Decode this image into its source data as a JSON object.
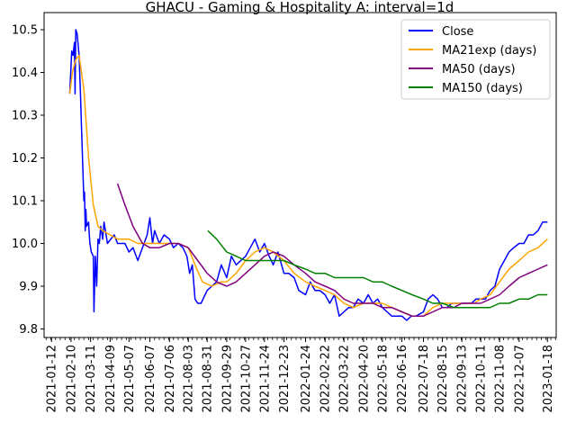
{
  "chart_data": {
    "type": "line",
    "title": "GHACU - Gaming & Hospitality A: interval=1d",
    "xlabel": "",
    "ylabel": "",
    "x_range": [
      "2021-01-01",
      "2023-01-31"
    ],
    "ylim": [
      9.78,
      10.54
    ],
    "y_ticks": [
      9.8,
      9.9,
      10.0,
      10.1,
      10.2,
      10.3,
      10.4,
      10.5
    ],
    "y_tick_labels": [
      "9.8",
      "9.9",
      "10.0",
      "10.1",
      "10.2",
      "10.3",
      "10.4",
      "10.5"
    ],
    "x_tick_labels": [
      "2021-01-12",
      "2021-02-10",
      "2021-03-11",
      "2021-04-09",
      "2021-05-07",
      "2021-06-07",
      "2021-07-06",
      "2021-08-03",
      "2021-08-31",
      "2021-09-29",
      "2021-10-27",
      "2021-11-24",
      "2021-12-23",
      "2022-01-24",
      "2022-02-22",
      "2022-03-22",
      "2022-04-20",
      "2022-05-18",
      "2022-06-16",
      "2022-07-18",
      "2022-08-15",
      "2022-09-13",
      "2022-10-11",
      "2022-11-08",
      "2022-12-07",
      "2023-01-18"
    ],
    "grid": false,
    "legend_position": "top-right",
    "series": [
      {
        "name": "Close",
        "color": "#0000ff",
        "points": [
          [
            "2021-02-08",
            10.35
          ],
          [
            "2021-02-11",
            10.45
          ],
          [
            "2021-02-13",
            10.44
          ],
          [
            "2021-02-15",
            10.47
          ],
          [
            "2021-02-16",
            10.35
          ],
          [
            "2021-02-17",
            10.5
          ],
          [
            "2021-02-19",
            10.49
          ],
          [
            "2021-02-22",
            10.44
          ],
          [
            "2021-02-24",
            10.35
          ],
          [
            "2021-02-26",
            10.25
          ],
          [
            "2021-03-01",
            10.1
          ],
          [
            "2021-03-02",
            10.12
          ],
          [
            "2021-03-03",
            10.03
          ],
          [
            "2021-03-04",
            10.08
          ],
          [
            "2021-03-05",
            10.04
          ],
          [
            "2021-03-08",
            10.05
          ],
          [
            "2021-03-09",
            10.02
          ],
          [
            "2021-03-10",
            10.0
          ],
          [
            "2021-03-12",
            9.98
          ],
          [
            "2021-03-15",
            9.97
          ],
          [
            "2021-03-16",
            9.84
          ],
          [
            "2021-03-18",
            9.97
          ],
          [
            "2021-03-20",
            9.9
          ],
          [
            "2021-03-22",
            10.01
          ],
          [
            "2021-03-24",
            10.0
          ],
          [
            "2021-03-26",
            10.04
          ],
          [
            "2021-03-29",
            10.01
          ],
          [
            "2021-03-31",
            10.05
          ],
          [
            "2021-04-05",
            10.0
          ],
          [
            "2021-04-10",
            10.01
          ],
          [
            "2021-04-15",
            10.02
          ],
          [
            "2021-04-20",
            10.0
          ],
          [
            "2021-05-01",
            10.0
          ],
          [
            "2021-05-07",
            9.98
          ],
          [
            "2021-05-13",
            9.99
          ],
          [
            "2021-05-20",
            9.96
          ],
          [
            "2021-05-27",
            9.99
          ],
          [
            "2021-06-03",
            10.02
          ],
          [
            "2021-06-07",
            10.06
          ],
          [
            "2021-06-11",
            10.0
          ],
          [
            "2021-06-14",
            10.03
          ],
          [
            "2021-06-21",
            10.0
          ],
          [
            "2021-06-28",
            10.02
          ],
          [
            "2021-07-06",
            10.01
          ],
          [
            "2021-07-12",
            9.99
          ],
          [
            "2021-07-19",
            10.0
          ],
          [
            "2021-07-26",
            9.99
          ],
          [
            "2021-08-01",
            9.97
          ],
          [
            "2021-08-05",
            9.93
          ],
          [
            "2021-08-09",
            9.95
          ],
          [
            "2021-08-13",
            9.87
          ],
          [
            "2021-08-17",
            9.86
          ],
          [
            "2021-08-22",
            9.86
          ],
          [
            "2021-08-31",
            9.89
          ],
          [
            "2021-09-07",
            9.9
          ],
          [
            "2021-09-14",
            9.91
          ],
          [
            "2021-09-21",
            9.95
          ],
          [
            "2021-09-29",
            9.92
          ],
          [
            "2021-10-06",
            9.97
          ],
          [
            "2021-10-13",
            9.95
          ],
          [
            "2021-10-20",
            9.96
          ],
          [
            "2021-10-27",
            9.97
          ],
          [
            "2021-11-03",
            9.99
          ],
          [
            "2021-11-10",
            10.01
          ],
          [
            "2021-11-17",
            9.98
          ],
          [
            "2021-11-24",
            10.0
          ],
          [
            "2021-12-01",
            9.97
          ],
          [
            "2021-12-07",
            9.95
          ],
          [
            "2021-12-14",
            9.98
          ],
          [
            "2021-12-23",
            9.93
          ],
          [
            "2021-12-30",
            9.93
          ],
          [
            "2022-01-07",
            9.92
          ],
          [
            "2022-01-14",
            9.89
          ],
          [
            "2022-01-24",
            9.88
          ],
          [
            "2022-01-31",
            9.91
          ],
          [
            "2022-02-07",
            9.89
          ],
          [
            "2022-02-14",
            9.89
          ],
          [
            "2022-02-22",
            9.88
          ],
          [
            "2022-03-01",
            9.86
          ],
          [
            "2022-03-08",
            9.88
          ],
          [
            "2022-03-15",
            9.83
          ],
          [
            "2022-03-22",
            9.84
          ],
          [
            "2022-03-29",
            9.85
          ],
          [
            "2022-04-05",
            9.85
          ],
          [
            "2022-04-12",
            9.87
          ],
          [
            "2022-04-20",
            9.86
          ],
          [
            "2022-04-27",
            9.88
          ],
          [
            "2022-05-04",
            9.86
          ],
          [
            "2022-05-11",
            9.87
          ],
          [
            "2022-05-18",
            9.85
          ],
          [
            "2022-05-25",
            9.84
          ],
          [
            "2022-06-01",
            9.83
          ],
          [
            "2022-06-08",
            9.83
          ],
          [
            "2022-06-16",
            9.83
          ],
          [
            "2022-06-23",
            9.82
          ],
          [
            "2022-06-30",
            9.83
          ],
          [
            "2022-07-07",
            9.83
          ],
          [
            "2022-07-18",
            9.84
          ],
          [
            "2022-07-25",
            9.87
          ],
          [
            "2022-08-01",
            9.88
          ],
          [
            "2022-08-08",
            9.87
          ],
          [
            "2022-08-15",
            9.85
          ],
          [
            "2022-08-22",
            9.85
          ],
          [
            "2022-08-29",
            9.86
          ],
          [
            "2022-09-06",
            9.86
          ],
          [
            "2022-09-13",
            9.86
          ],
          [
            "2022-09-20",
            9.86
          ],
          [
            "2022-09-27",
            9.86
          ],
          [
            "2022-10-04",
            9.87
          ],
          [
            "2022-10-11",
            9.87
          ],
          [
            "2022-10-18",
            9.87
          ],
          [
            "2022-10-25",
            9.89
          ],
          [
            "2022-11-01",
            9.9
          ],
          [
            "2022-11-08",
            9.94
          ],
          [
            "2022-11-15",
            9.96
          ],
          [
            "2022-11-22",
            9.98
          ],
          [
            "2022-11-29",
            9.99
          ],
          [
            "2022-12-07",
            10.0
          ],
          [
            "2022-12-14",
            10.0
          ],
          [
            "2022-12-21",
            10.02
          ],
          [
            "2022-12-28",
            10.02
          ],
          [
            "2023-01-04",
            10.03
          ],
          [
            "2023-01-11",
            10.05
          ],
          [
            "2023-01-18",
            10.05
          ]
        ]
      },
      {
        "name": "MA21exp (days)",
        "color": "#ffa500",
        "points": [
          [
            "2021-02-08",
            10.35
          ],
          [
            "2021-02-12",
            10.4
          ],
          [
            "2021-02-17",
            10.43
          ],
          [
            "2021-02-22",
            10.44
          ],
          [
            "2021-03-01",
            10.36
          ],
          [
            "2021-03-08",
            10.2
          ],
          [
            "2021-03-15",
            10.09
          ],
          [
            "2021-03-22",
            10.04
          ],
          [
            "2021-03-29",
            10.03
          ],
          [
            "2021-04-09",
            10.02
          ],
          [
            "2021-04-20",
            10.01
          ],
          [
            "2021-05-07",
            10.01
          ],
          [
            "2021-05-20",
            10.0
          ],
          [
            "2021-06-07",
            10.0
          ],
          [
            "2021-06-21",
            10.0
          ],
          [
            "2021-07-06",
            10.0
          ],
          [
            "2021-07-19",
            10.0
          ],
          [
            "2021-08-03",
            9.99
          ],
          [
            "2021-08-13",
            9.95
          ],
          [
            "2021-08-24",
            9.91
          ],
          [
            "2021-09-07",
            9.9
          ],
          [
            "2021-09-21",
            9.91
          ],
          [
            "2021-09-29",
            9.91
          ],
          [
            "2021-10-13",
            9.93
          ],
          [
            "2021-10-27",
            9.96
          ],
          [
            "2021-11-10",
            9.98
          ],
          [
            "2021-11-24",
            9.99
          ],
          [
            "2021-12-07",
            9.98
          ],
          [
            "2021-12-23",
            9.96
          ],
          [
            "2022-01-07",
            9.93
          ],
          [
            "2022-01-24",
            9.91
          ],
          [
            "2022-02-07",
            9.9
          ],
          [
            "2022-02-22",
            9.89
          ],
          [
            "2022-03-08",
            9.88
          ],
          [
            "2022-03-22",
            9.86
          ],
          [
            "2022-04-05",
            9.85
          ],
          [
            "2022-04-20",
            9.86
          ],
          [
            "2022-05-04",
            9.86
          ],
          [
            "2022-05-18",
            9.86
          ],
          [
            "2022-06-01",
            9.85
          ],
          [
            "2022-06-16",
            9.84
          ],
          [
            "2022-07-01",
            9.83
          ],
          [
            "2022-07-18",
            9.83
          ],
          [
            "2022-08-01",
            9.85
          ],
          [
            "2022-08-15",
            9.86
          ],
          [
            "2022-09-01",
            9.86
          ],
          [
            "2022-09-13",
            9.86
          ],
          [
            "2022-10-01",
            9.86
          ],
          [
            "2022-10-11",
            9.87
          ],
          [
            "2022-10-25",
            9.88
          ],
          [
            "2022-11-08",
            9.91
          ],
          [
            "2022-11-22",
            9.94
          ],
          [
            "2022-12-07",
            9.96
          ],
          [
            "2022-12-21",
            9.98
          ],
          [
            "2023-01-04",
            9.99
          ],
          [
            "2023-01-18",
            10.01
          ]
        ]
      },
      {
        "name": "MA50 (days)",
        "color": "#800080",
        "points": [
          [
            "2021-04-20",
            10.14
          ],
          [
            "2021-05-01",
            10.09
          ],
          [
            "2021-05-13",
            10.04
          ],
          [
            "2021-05-27",
            10.0
          ],
          [
            "2021-06-07",
            9.99
          ],
          [
            "2021-06-21",
            9.99
          ],
          [
            "2021-07-06",
            10.0
          ],
          [
            "2021-07-19",
            10.0
          ],
          [
            "2021-08-03",
            9.99
          ],
          [
            "2021-08-17",
            9.96
          ],
          [
            "2021-08-31",
            9.93
          ],
          [
            "2021-09-14",
            9.91
          ],
          [
            "2021-09-29",
            9.9
          ],
          [
            "2021-10-13",
            9.91
          ],
          [
            "2021-10-27",
            9.93
          ],
          [
            "2021-11-10",
            9.95
          ],
          [
            "2021-11-24",
            9.97
          ],
          [
            "2021-12-07",
            9.98
          ],
          [
            "2021-12-23",
            9.97
          ],
          [
            "2022-01-07",
            9.95
          ],
          [
            "2022-01-24",
            9.93
          ],
          [
            "2022-02-07",
            9.91
          ],
          [
            "2022-02-22",
            9.9
          ],
          [
            "2022-03-08",
            9.89
          ],
          [
            "2022-03-22",
            9.87
          ],
          [
            "2022-04-05",
            9.86
          ],
          [
            "2022-04-20",
            9.86
          ],
          [
            "2022-05-04",
            9.86
          ],
          [
            "2022-05-18",
            9.85
          ],
          [
            "2022-06-01",
            9.85
          ],
          [
            "2022-06-16",
            9.84
          ],
          [
            "2022-07-01",
            9.83
          ],
          [
            "2022-07-18",
            9.83
          ],
          [
            "2022-08-01",
            9.84
          ],
          [
            "2022-08-15",
            9.85
          ],
          [
            "2022-09-01",
            9.85
          ],
          [
            "2022-09-13",
            9.86
          ],
          [
            "2022-10-01",
            9.86
          ],
          [
            "2022-10-11",
            9.86
          ],
          [
            "2022-10-25",
            9.87
          ],
          [
            "2022-11-08",
            9.88
          ],
          [
            "2022-11-22",
            9.9
          ],
          [
            "2022-12-07",
            9.92
          ],
          [
            "2022-12-21",
            9.93
          ],
          [
            "2023-01-04",
            9.94
          ],
          [
            "2023-01-18",
            9.95
          ]
        ]
      },
      {
        "name": "MA150 (days)",
        "color": "#008000",
        "points": [
          [
            "2021-09-01",
            10.03
          ],
          [
            "2021-09-14",
            10.01
          ],
          [
            "2021-09-29",
            9.98
          ],
          [
            "2021-10-13",
            9.97
          ],
          [
            "2021-10-27",
            9.96
          ],
          [
            "2021-11-10",
            9.96
          ],
          [
            "2021-11-24",
            9.96
          ],
          [
            "2021-12-07",
            9.96
          ],
          [
            "2021-12-23",
            9.96
          ],
          [
            "2022-01-07",
            9.95
          ],
          [
            "2022-01-24",
            9.94
          ],
          [
            "2022-02-07",
            9.93
          ],
          [
            "2022-02-22",
            9.93
          ],
          [
            "2022-03-08",
            9.92
          ],
          [
            "2022-03-22",
            9.92
          ],
          [
            "2022-04-05",
            9.92
          ],
          [
            "2022-04-20",
            9.92
          ],
          [
            "2022-05-04",
            9.91
          ],
          [
            "2022-05-18",
            9.91
          ],
          [
            "2022-06-01",
            9.9
          ],
          [
            "2022-06-16",
            9.89
          ],
          [
            "2022-07-01",
            9.88
          ],
          [
            "2022-07-18",
            9.87
          ],
          [
            "2022-08-01",
            9.86
          ],
          [
            "2022-08-15",
            9.86
          ],
          [
            "2022-09-01",
            9.85
          ],
          [
            "2022-09-13",
            9.85
          ],
          [
            "2022-10-01",
            9.85
          ],
          [
            "2022-10-11",
            9.85
          ],
          [
            "2022-10-25",
            9.85
          ],
          [
            "2022-11-08",
            9.86
          ],
          [
            "2022-11-22",
            9.86
          ],
          [
            "2022-12-07",
            9.87
          ],
          [
            "2022-12-21",
            9.87
          ],
          [
            "2023-01-04",
            9.88
          ],
          [
            "2023-01-18",
            9.88
          ]
        ]
      }
    ]
  }
}
